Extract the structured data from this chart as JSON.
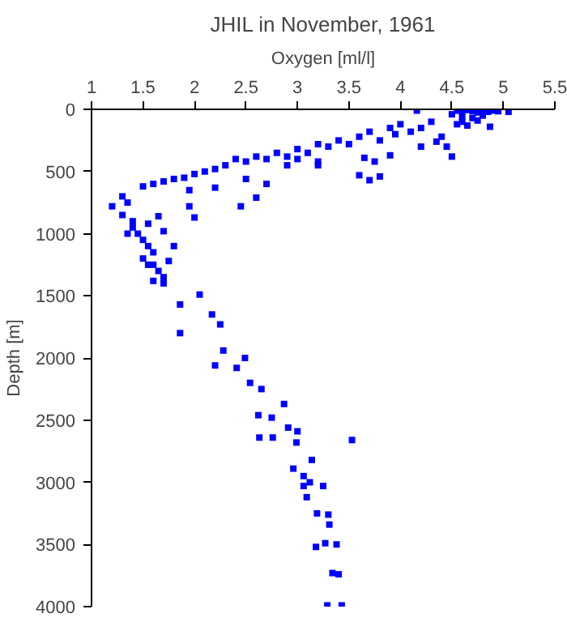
{
  "chart_data": {
    "type": "scatter",
    "title": "JHIL in November, 1961",
    "xlabel": "Oxygen [ml/l]",
    "ylabel": "Depth [m]",
    "xlim": [
      1,
      5.5
    ],
    "ylim": [
      4000,
      0
    ],
    "xticks": [
      1,
      1.5,
      2,
      2.5,
      3,
      3.5,
      4,
      4.5,
      5,
      5.5
    ],
    "yticks": [
      0,
      500,
      1000,
      1500,
      2000,
      2500,
      3000,
      3500,
      4000
    ],
    "grid": false,
    "marker": "square",
    "series": [
      {
        "color": "#0000ff",
        "x": [
          4.55,
          4.6,
          4.65,
          4.7,
          4.75,
          4.8,
          4.85,
          4.9,
          4.6,
          4.7,
          4.8,
          4.55,
          4.65,
          4.87,
          5.05,
          4.95,
          4.5,
          4.6,
          4.75,
          4.16,
          4.3,
          4.2,
          4.1,
          4.0,
          3.95,
          3.9,
          3.8,
          3.7,
          3.6,
          3.5,
          3.4,
          3.3,
          3.2,
          3.1,
          3.0,
          2.9,
          2.8,
          2.7,
          2.6,
          2.5,
          2.4,
          2.3,
          2.2,
          2.1,
          2.0,
          1.9,
          1.8,
          1.7,
          1.6,
          1.5,
          4.4,
          4.35,
          4.2,
          3.9,
          3.75,
          3.65,
          3.6,
          3.7,
          3.8,
          3.2,
          3.2,
          2.9,
          2.7,
          2.6,
          2.45,
          2.0,
          1.95,
          1.95,
          2.2,
          2.5,
          3.0,
          4.5,
          4.45,
          1.2,
          1.3,
          1.35,
          1.3,
          1.4,
          1.4,
          1.45,
          1.5,
          1.35,
          1.55,
          1.6,
          1.5,
          1.6,
          1.65,
          1.7,
          1.6,
          1.7,
          1.55,
          1.65,
          1.7,
          1.55,
          1.8,
          1.75,
          1.86,
          2.05,
          2.17,
          1.86,
          2.25,
          2.28,
          2.2,
          2.41,
          2.49,
          2.54,
          2.65,
          2.62,
          2.75,
          2.87,
          2.91,
          3.0,
          3.53,
          2.63,
          2.76,
          2.99,
          2.96,
          3.14,
          3.06,
          3.12,
          3.06,
          3.09,
          3.25,
          3.19,
          3.3,
          3.31,
          3.18,
          3.27,
          3.38,
          3.34,
          3.4,
          3.29,
          3.43
        ],
        "values": [
          10,
          20,
          5,
          15,
          25,
          10,
          20,
          10,
          60,
          70,
          50,
          120,
          130,
          140,
          20,
          15,
          40,
          100,
          90,
          10,
          100,
          150,
          180,
          120,
          200,
          150,
          250,
          180,
          220,
          280,
          250,
          300,
          280,
          350,
          320,
          380,
          350,
          400,
          380,
          420,
          400,
          450,
          480,
          500,
          520,
          550,
          560,
          580,
          600,
          620,
          220,
          260,
          300,
          370,
          420,
          390,
          530,
          570,
          540,
          450,
          420,
          450,
          600,
          710,
          780,
          870,
          780,
          650,
          630,
          560,
          400,
          380,
          300,
          780,
          700,
          750,
          850,
          900,
          950,
          1000,
          1050,
          1000,
          1100,
          1150,
          1200,
          1250,
          1300,
          1350,
          1380,
          1400,
          920,
          860,
          980,
          1250,
          1100,
          1220,
          1570,
          1490,
          1650,
          1800,
          1730,
          1940,
          2060,
          2080,
          2000,
          2200,
          2250,
          2460,
          2480,
          2370,
          2560,
          2590,
          2660,
          2640,
          2640,
          2680,
          2890,
          2820,
          2950,
          3000,
          3030,
          3120,
          3030,
          3250,
          3260,
          3340,
          3520,
          3490,
          3500,
          3730,
          3740,
          3990,
          3990
        ]
      }
    ]
  }
}
